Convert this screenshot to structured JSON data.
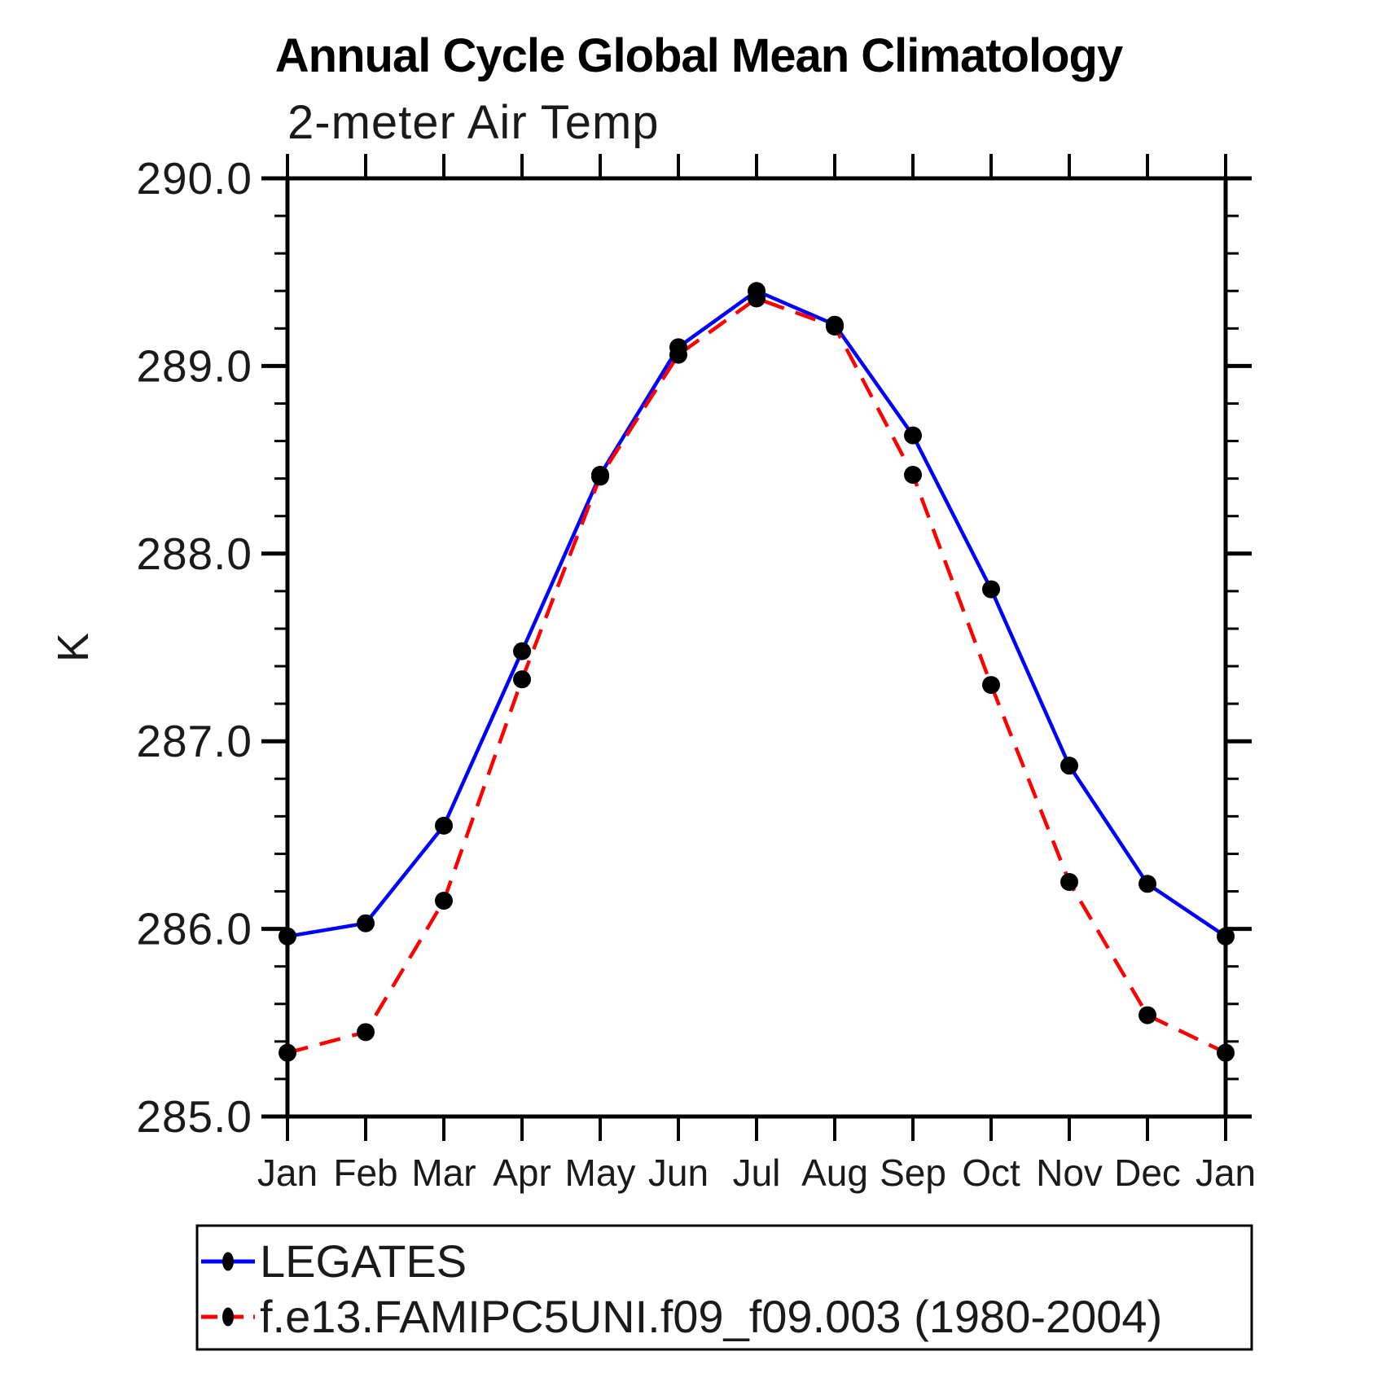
{
  "chart_data": {
    "type": "line",
    "title": "Annual Cycle Global Mean Climatology",
    "subtitle": "2-meter Air Temp",
    "ylabel": "K",
    "xlabel": "",
    "categories": [
      "Jan",
      "Feb",
      "Mar",
      "Apr",
      "May",
      "Jun",
      "Jul",
      "Aug",
      "Sep",
      "Oct",
      "Nov",
      "Dec",
      "Jan"
    ],
    "series": [
      {
        "name": "LEGATES",
        "color": "#0000ff",
        "line_style": "solid",
        "marker": "filled-black-circle",
        "values": [
          285.96,
          286.03,
          286.55,
          287.48,
          288.42,
          289.1,
          289.4,
          289.22,
          288.63,
          287.81,
          286.87,
          286.24,
          285.96
        ]
      },
      {
        "name": "f.e13.FAMIPC5UNI.f09_f09.003 (1980-2004)",
        "color": "#ff0000",
        "line_style": "dashed",
        "marker": "filled-black-circle",
        "values": [
          285.34,
          285.45,
          286.15,
          287.33,
          288.41,
          289.06,
          289.36,
          289.21,
          288.42,
          287.3,
          286.25,
          285.54,
          285.34
        ]
      }
    ],
    "ylim": [
      285.0,
      290.0
    ],
    "ytick_labels": [
      "285.0",
      "286.0",
      "287.0",
      "288.0",
      "289.0",
      "290.0"
    ],
    "ytick_major_step": 1.0,
    "ytick_minor_step": 0.2,
    "grid": false,
    "legend_position": "bottom-left-box",
    "colors": {
      "axis": "#000000",
      "marker": "#000000",
      "background": "#ffffff"
    }
  }
}
